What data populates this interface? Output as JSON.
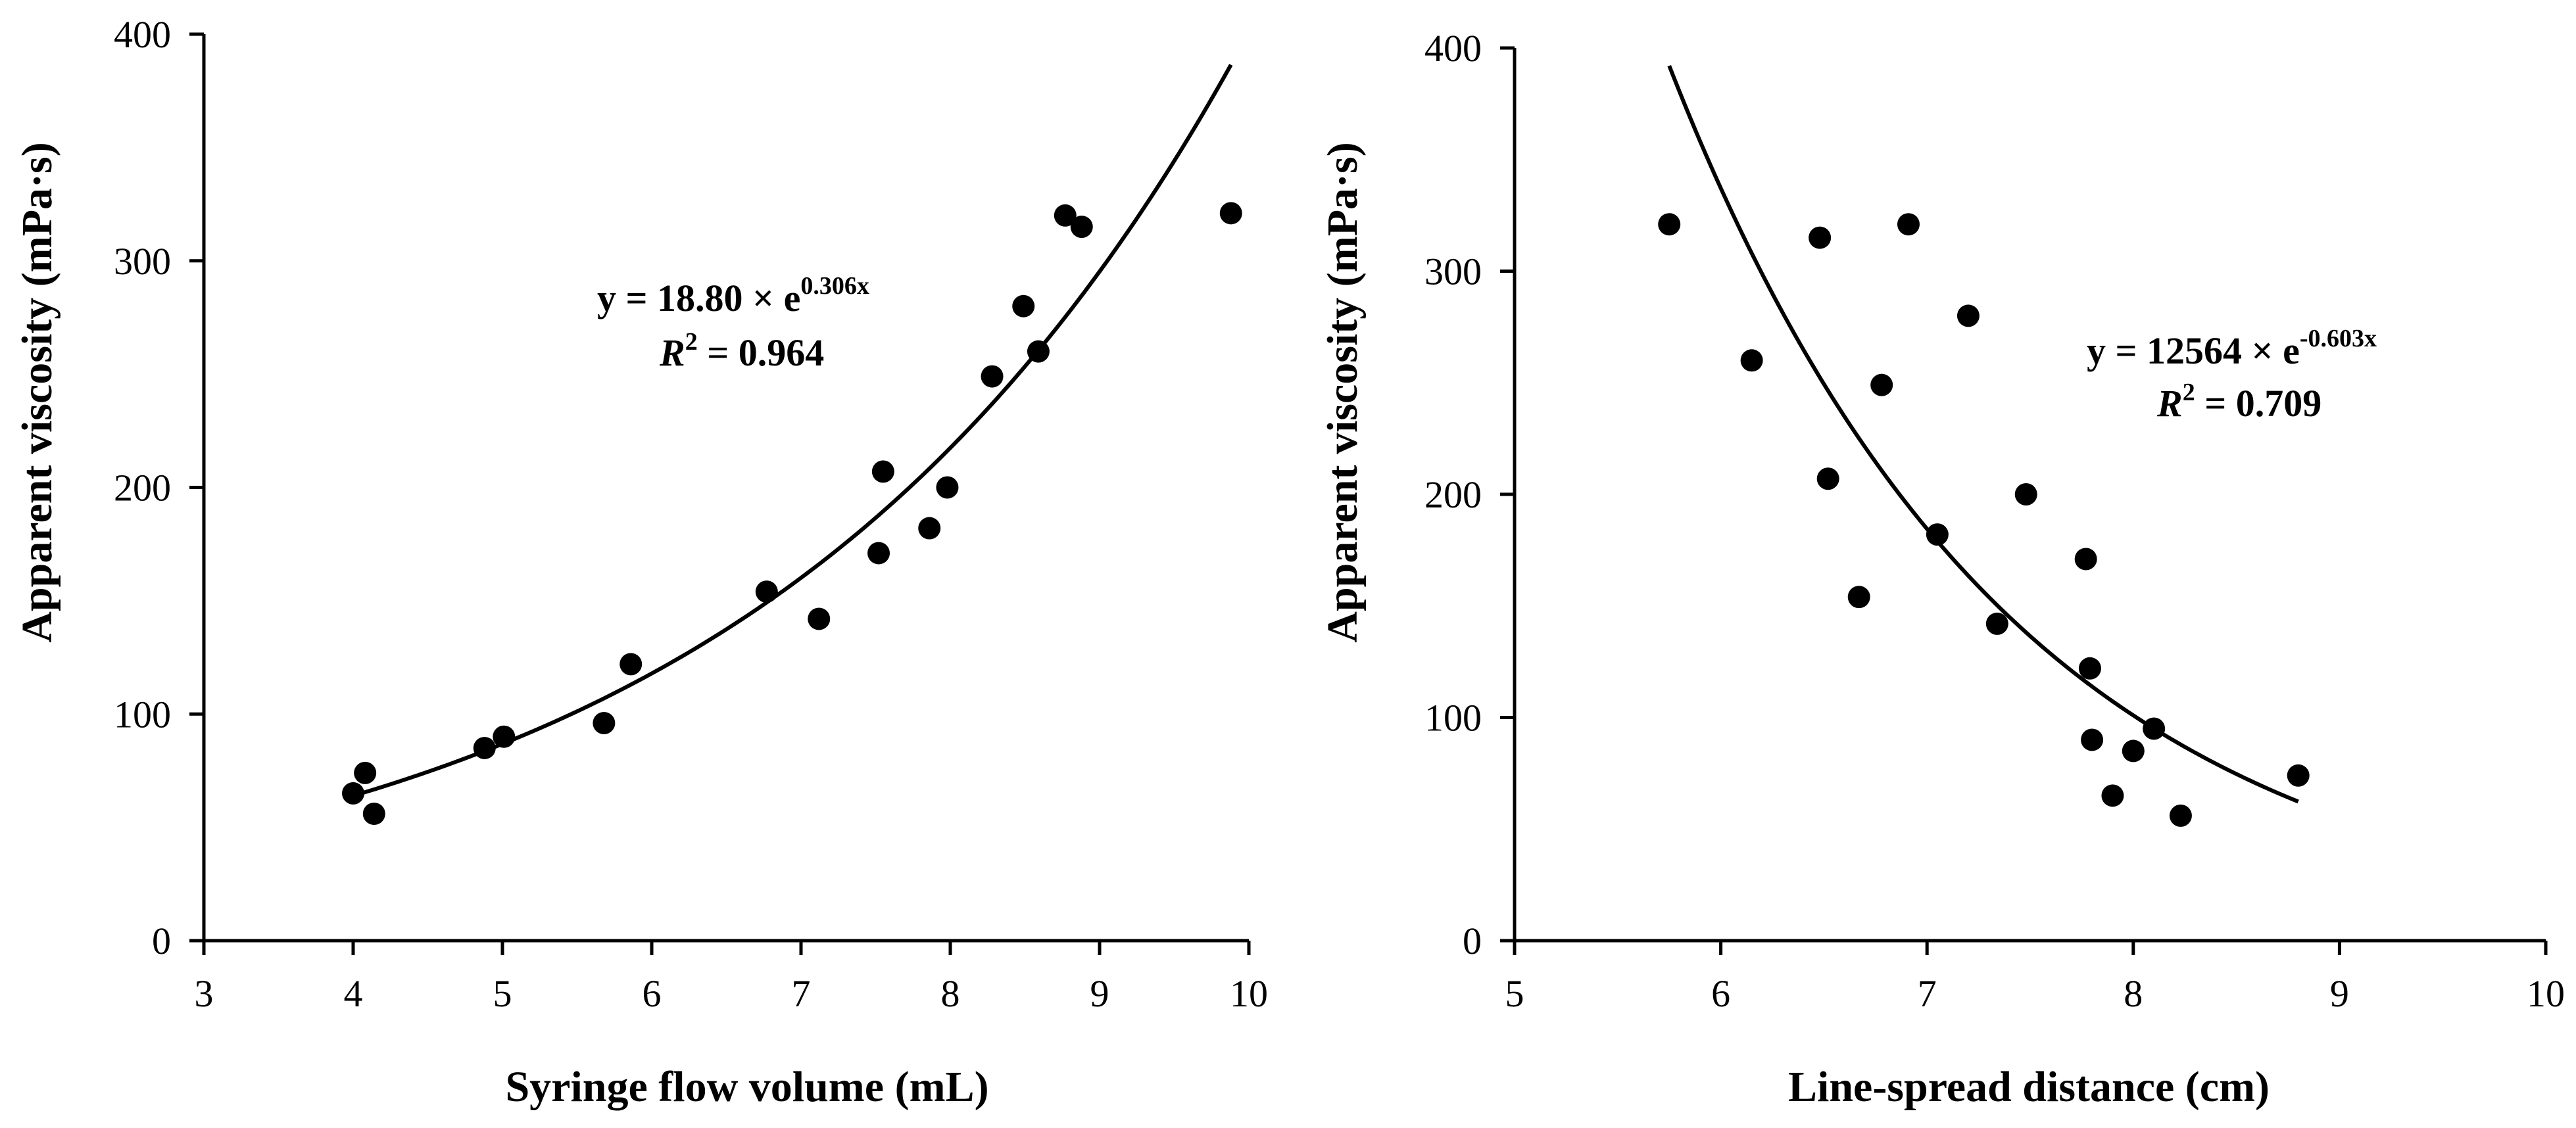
{
  "chart_data": [
    {
      "type": "scatter",
      "id": "left",
      "title": "",
      "xlabel": "Syringe flow volume (mL)",
      "ylabel": "Apparent viscosity (mPa·s)",
      "xlim": [
        3,
        10
      ],
      "ylim": [
        0,
        400
      ],
      "xticks": [
        3,
        4,
        5,
        6,
        7,
        8,
        9,
        10
      ],
      "yticks": [
        0,
        100,
        200,
        300,
        400
      ],
      "points": [
        {
          "x": 4.0,
          "y": 65
        },
        {
          "x": 4.08,
          "y": 74
        },
        {
          "x": 4.14,
          "y": 56
        },
        {
          "x": 4.88,
          "y": 85
        },
        {
          "x": 5.01,
          "y": 90
        },
        {
          "x": 5.68,
          "y": 96
        },
        {
          "x": 5.86,
          "y": 122
        },
        {
          "x": 6.77,
          "y": 154
        },
        {
          "x": 7.12,
          "y": 142
        },
        {
          "x": 7.52,
          "y": 171
        },
        {
          "x": 7.55,
          "y": 207
        },
        {
          "x": 7.86,
          "y": 182
        },
        {
          "x": 7.98,
          "y": 200
        },
        {
          "x": 8.28,
          "y": 249
        },
        {
          "x": 8.49,
          "y": 280
        },
        {
          "x": 8.59,
          "y": 260
        },
        {
          "x": 8.77,
          "y": 320
        },
        {
          "x": 8.88,
          "y": 315
        },
        {
          "x": 9.88,
          "y": 321
        }
      ],
      "fit": {
        "a": 18.8,
        "b": 0.306,
        "x_range": [
          4.0,
          9.88
        ]
      },
      "annotation": {
        "equation_prefix": "y = 18.80 × e",
        "equation_exponent": "0.306x",
        "r2_symbol": "R",
        "r2_sup": "2",
        "r2_value": " = 0.964"
      }
    },
    {
      "type": "scatter",
      "id": "right",
      "title": "",
      "xlabel": "Line-spread distance (cm)",
      "ylabel": "Apparent viscosity (mPa·s)",
      "xlim": [
        5,
        10
      ],
      "ylim": [
        0,
        400
      ],
      "xticks": [
        5,
        6,
        7,
        8,
        9,
        10
      ],
      "yticks": [
        0,
        100,
        200,
        300,
        400
      ],
      "points": [
        {
          "x": 5.75,
          "y": 321
        },
        {
          "x": 6.15,
          "y": 260
        },
        {
          "x": 6.48,
          "y": 315
        },
        {
          "x": 6.52,
          "y": 207
        },
        {
          "x": 6.67,
          "y": 154
        },
        {
          "x": 6.78,
          "y": 249
        },
        {
          "x": 6.91,
          "y": 321
        },
        {
          "x": 7.05,
          "y": 182
        },
        {
          "x": 7.2,
          "y": 280
        },
        {
          "x": 7.34,
          "y": 142
        },
        {
          "x": 7.48,
          "y": 200
        },
        {
          "x": 7.77,
          "y": 171
        },
        {
          "x": 7.79,
          "y": 122
        },
        {
          "x": 7.8,
          "y": 90
        },
        {
          "x": 7.9,
          "y": 65
        },
        {
          "x": 8.0,
          "y": 85
        },
        {
          "x": 8.1,
          "y": 95
        },
        {
          "x": 8.23,
          "y": 56
        },
        {
          "x": 8.8,
          "y": 74
        }
      ],
      "fit": {
        "a": 12564,
        "b": -0.603,
        "x_range": [
          5.75,
          8.8
        ]
      },
      "annotation": {
        "equation_prefix": "y = 12564 × e",
        "equation_exponent": "-0.603x",
        "r2_symbol": "R",
        "r2_sup": "2",
        "r2_value": " = 0.709"
      }
    }
  ]
}
